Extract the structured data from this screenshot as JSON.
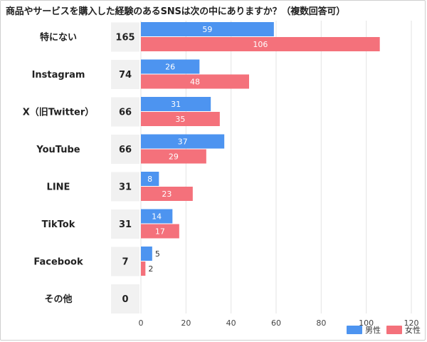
{
  "chart_data": {
    "type": "bar",
    "orientation": "horizontal",
    "title": "商品やサービスを購入した経験のあるSNSは次の中にありますか？（複数回答可）",
    "categories": [
      "特にない",
      "Instagram",
      "X（旧Twitter）",
      "YouTube",
      "LINE",
      "TikTok",
      "Facebook",
      "その他"
    ],
    "totals": [
      "165",
      "74",
      "66",
      "66",
      "31",
      "31",
      "7",
      "0"
    ],
    "series": [
      {
        "name": "男性",
        "values": [
          59,
          26,
          31,
          37,
          8,
          14,
          5,
          0
        ],
        "color": "#4d94f0"
      },
      {
        "name": "女性",
        "values": [
          106,
          48,
          35,
          29,
          23,
          17,
          2,
          0
        ],
        "color": "#f4717b"
      }
    ],
    "xlim": [
      0,
      120
    ],
    "xticks": [
      0,
      20,
      40,
      60,
      80,
      100,
      120
    ],
    "grid": true,
    "legend_position": "bottom-right"
  }
}
